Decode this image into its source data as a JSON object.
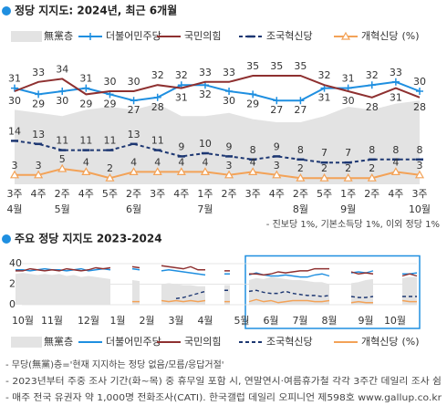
{
  "chart_data": [
    {
      "type": "line",
      "title": "정당 지지도: 2024년, 최근 6개월",
      "unit": "(%)",
      "data_labels": true,
      "categories": [
        "3주",
        "4주",
        "2주",
        "4주",
        "5주",
        "2주",
        "3주",
        "4주",
        "1주",
        "2주",
        "3주",
        "4주",
        "2주",
        "5주",
        "1주",
        "2주",
        "4주",
        "3주"
      ],
      "months": [
        "4월",
        null,
        "5월",
        null,
        null,
        "6월",
        null,
        null,
        "7월",
        null,
        null,
        null,
        "8월",
        null,
        "9월",
        null,
        null,
        "10월"
      ],
      "ylim": [
        0,
        45
      ],
      "series": [
        {
          "name": "無黨층",
          "color": "#e3e3e3",
          "kind": "area",
          "marker": "none",
          "values": [
            24,
            23,
            22,
            24,
            25,
            24,
            26,
            22,
            22,
            23,
            21,
            20,
            20,
            22,
            25,
            24,
            26,
            27
          ]
        },
        {
          "name": "더불어민주당",
          "color": "#1f8fe0",
          "kind": "line",
          "marker": "plus",
          "values": [
            31,
            29,
            30,
            31,
            29,
            27,
            28,
            32,
            32,
            30,
            29,
            27,
            27,
            31,
            31,
            32,
            33,
            30
          ]
        },
        {
          "name": "국민의힘",
          "color": "#8e3030",
          "kind": "line",
          "marker": "none",
          "values": [
            30,
            33,
            34,
            29,
            30,
            30,
            32,
            31,
            33,
            33,
            35,
            35,
            35,
            32,
            30,
            28,
            31,
            28
          ]
        },
        {
          "name": "조국혁신당",
          "color": "#1d3772",
          "kind": "line",
          "dash": true,
          "marker": "dash",
          "values": [
            14,
            13,
            11,
            11,
            11,
            13,
            11,
            9,
            10,
            9,
            8,
            9,
            8,
            7,
            7,
            8,
            8,
            8
          ]
        },
        {
          "name": "개혁신당",
          "color": "#f3a257",
          "kind": "line",
          "marker": "triangle",
          "values": [
            3,
            3,
            5,
            4,
            2,
            4,
            4,
            4,
            4,
            3,
            4,
            3,
            2,
            2,
            2,
            2,
            4,
            3
          ]
        }
      ],
      "note": "- 진보당 1%, 기본소득당 1%, 이외 정당 1%"
    },
    {
      "type": "line",
      "title": "주요 정당 지지도 2023-2024",
      "unit": "(%)",
      "data_labels": false,
      "categories": [
        null,
        "10월",
        null,
        null,
        null,
        "11월",
        null,
        null,
        null,
        null,
        "12월",
        null,
        null,
        null,
        "1월",
        null,
        null,
        null,
        "2월",
        null,
        null,
        null,
        "3월",
        null,
        null,
        null,
        "4월",
        null,
        null,
        null,
        null,
        "5월",
        null,
        null,
        null,
        "6월",
        null,
        null,
        null,
        "7월",
        null,
        null,
        null,
        "8월",
        null,
        null,
        null,
        null,
        "9월",
        null,
        null,
        null,
        "10월",
        null,
        null,
        null
      ],
      "ylim": [
        0,
        44
      ],
      "yticks": [
        0,
        20,
        40
      ],
      "highlight_last": 24,
      "series": [
        {
          "name": "無黨층",
          "color": "#e3e3e3",
          "kind": "area",
          "marker": "none",
          "values": [
            30,
            31,
            30,
            29,
            30,
            29,
            30,
            28,
            29,
            27,
            28,
            27,
            26,
            25,
            null,
            null,
            24,
            23,
            null,
            null,
            20,
            21,
            20,
            19,
            19,
            18,
            18,
            null,
            null,
            19,
            null,
            null,
            24,
            26,
            25,
            27,
            26,
            25,
            24,
            24,
            23,
            22,
            22,
            20,
            null,
            null,
            21,
            22,
            24,
            25,
            null,
            null,
            null,
            26,
            27,
            27
          ]
        },
        {
          "name": "더불어민주당",
          "color": "#1f8fe0",
          "kind": "line",
          "marker": "none",
          "values": [
            34,
            34,
            33,
            34,
            35,
            34,
            34,
            33,
            34,
            35,
            33,
            34,
            35,
            34,
            null,
            null,
            35,
            34,
            null,
            null,
            33,
            34,
            33,
            32,
            31,
            30,
            29,
            null,
            null,
            30,
            null,
            null,
            29,
            31,
            29,
            28,
            28,
            29,
            28,
            27,
            27,
            29,
            30,
            28,
            null,
            null,
            31,
            32,
            31,
            33,
            null,
            null,
            null,
            30,
            30,
            31
          ]
        },
        {
          "name": "국민의힘",
          "color": "#8e3030",
          "kind": "line",
          "marker": "none",
          "values": [
            33,
            33,
            35,
            34,
            33,
            34,
            33,
            35,
            34,
            33,
            34,
            36,
            35,
            36,
            null,
            null,
            37,
            36,
            null,
            null,
            38,
            37,
            36,
            35,
            37,
            34,
            34,
            null,
            null,
            33,
            null,
            null,
            30,
            30,
            29,
            30,
            32,
            31,
            32,
            33,
            33,
            35,
            35,
            35,
            null,
            null,
            32,
            30,
            31,
            30,
            null,
            null,
            null,
            28,
            30,
            28
          ]
        },
        {
          "name": "조국혁신당",
          "color": "#1d3772",
          "kind": "line",
          "dash": true,
          "marker": "none",
          "values": [
            null,
            null,
            null,
            null,
            null,
            null,
            null,
            null,
            null,
            null,
            null,
            null,
            null,
            null,
            null,
            null,
            null,
            null,
            null,
            null,
            null,
            null,
            6,
            7,
            9,
            11,
            13,
            null,
            null,
            14,
            null,
            null,
            13,
            14,
            12,
            11,
            11,
            13,
            11,
            10,
            9,
            9,
            8,
            9,
            null,
            null,
            8,
            7,
            7,
            8,
            null,
            null,
            null,
            8,
            8,
            8
          ]
        },
        {
          "name": "개혁신당",
          "color": "#f3a257",
          "kind": "line",
          "marker": "none",
          "values": [
            null,
            null,
            null,
            null,
            null,
            null,
            null,
            null,
            null,
            null,
            null,
            null,
            null,
            null,
            null,
            null,
            3,
            3,
            null,
            null,
            4,
            3,
            4,
            3,
            4,
            3,
            4,
            null,
            null,
            3,
            null,
            null,
            3,
            5,
            3,
            4,
            2,
            3,
            4,
            4,
            4,
            3,
            3,
            4,
            null,
            null,
            2,
            3,
            2,
            2,
            null,
            null,
            null,
            4,
            3,
            3
          ]
        }
      ]
    }
  ],
  "footnotes": [
    "- 무당(無黨)층='현재 지지하는 정당 없음/모름/응답거절'",
    "- 2023년부터 주중 조사 기간(화~목) 중 휴무일 포함 시, 연말연시·여름휴가철 각각 3주간 데일리 조사 쉼",
    "- 매주 전국 유권자 약 1,000명 전화조사(CATI). 한국갤럽 데일리 오피니언 제598호 www.gallup.co.kr"
  ]
}
